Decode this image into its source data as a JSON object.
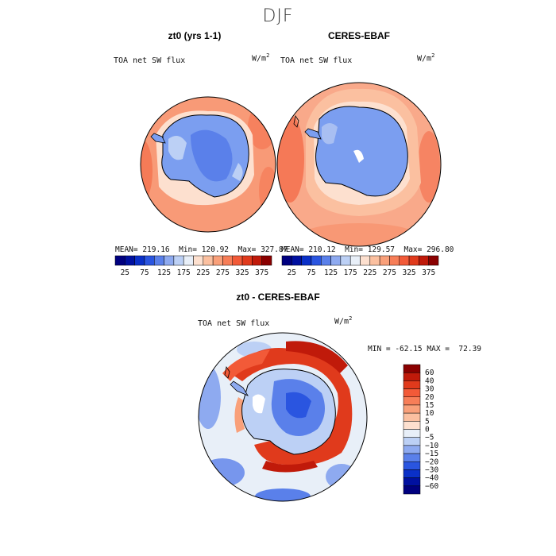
{
  "season": "DJF",
  "colors": {
    "bwr": [
      "#00007f",
      "#0010a0",
      "#0a30c8",
      "#2a55e0",
      "#5a80ea",
      "#8eaaf0",
      "#bcd0f5",
      "#e8eff8",
      "#fde0cf",
      "#fbc0a0",
      "#f9a07a",
      "#f77e58",
      "#f25a38",
      "#e03a1c",
      "#c01a0a",
      "#8a0000"
    ],
    "antarctica": "#7b9ef0",
    "ocean_mid": "#f9a98a"
  },
  "panels": [
    {
      "title": "zt0 (yrs 1-1)",
      "variable": "TOA net SW flux",
      "units_base": "W/m",
      "units_exp": "2",
      "mean": "219.16",
      "min": "120.92",
      "max": "327.87"
    },
    {
      "title": "CERES-EBAF",
      "variable": "TOA net SW flux",
      "units_base": "W/m",
      "units_exp": "2",
      "mean": "210.12",
      "min": "129.57",
      "max": "296.80"
    }
  ],
  "diff_panel": {
    "title": "zt0 - CERES-EBAF",
    "variable": "TOA net SW flux",
    "units_base": "W/m",
    "units_exp": "2",
    "min": "-62.15",
    "max": "72.39"
  },
  "chart_data": [
    {
      "type": "heatmap",
      "projection": "south polar stereographic",
      "title": "zt0 (yrs 1-1)",
      "variable": "TOA net SW flux",
      "units": "W/m^2",
      "stats": {
        "mean": 219.16,
        "min": 120.92,
        "max": 327.87
      },
      "colorbar_levels": [
        25,
        50,
        75,
        100,
        125,
        150,
        175,
        200,
        225,
        250,
        275,
        300,
        325,
        350,
        375
      ],
      "colorbar_labels": [
        "25",
        "75",
        "125",
        "175",
        "225",
        "275",
        "325",
        "375"
      ]
    },
    {
      "type": "heatmap",
      "projection": "south polar stereographic",
      "title": "CERES-EBAF",
      "variable": "TOA net SW flux",
      "units": "W/m^2",
      "stats": {
        "mean": 210.12,
        "min": 129.57,
        "max": 296.8
      },
      "colorbar_levels": [
        25,
        50,
        75,
        100,
        125,
        150,
        175,
        200,
        225,
        250,
        275,
        300,
        325,
        350,
        375
      ],
      "colorbar_labels": [
        "25",
        "75",
        "125",
        "175",
        "225",
        "275",
        "325",
        "375"
      ]
    },
    {
      "type": "heatmap",
      "projection": "south polar stereographic",
      "title": "zt0 - CERES-EBAF",
      "variable": "TOA net SW flux",
      "units": "W/m^2",
      "stats": {
        "min": -62.15,
        "max": 72.39
      },
      "colorbar_levels": [
        60,
        40,
        30,
        20,
        15,
        10,
        5,
        0,
        -5,
        -10,
        -15,
        -20,
        -30,
        -40,
        -60
      ],
      "colorbar_labels": [
        "60",
        "40",
        "30",
        "20",
        "15",
        "10",
        "5",
        "0",
        "−5",
        "−10",
        "−15",
        "−20",
        "−30",
        "−40",
        "−60"
      ]
    }
  ]
}
